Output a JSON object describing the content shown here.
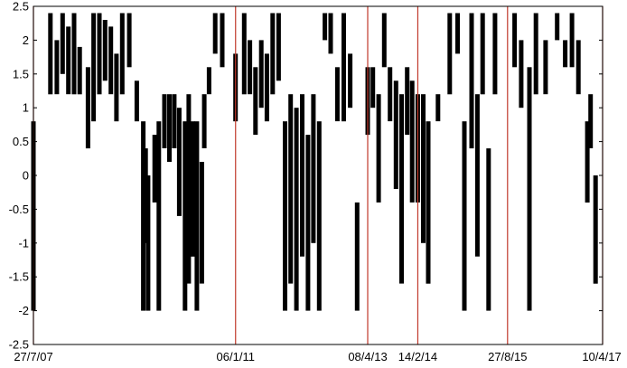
{
  "chart_data": {
    "type": "bar",
    "title": "",
    "xlabel": "",
    "ylabel": "",
    "ylim": [
      -2.5,
      2.5
    ],
    "yticks": [
      -2.5,
      -2,
      -1.5,
      -1,
      -0.5,
      0,
      0.5,
      1,
      1.5,
      2,
      2.5
    ],
    "ytick_labels": [
      "-2.5",
      "-2",
      "-1.5",
      "-1",
      "-0.5",
      "0",
      "0.5",
      "1",
      "1.5",
      "2",
      "2.5"
    ],
    "xlim": [
      "2007-07-27",
      "2017-04-10"
    ],
    "xtick_labels": [
      {
        "label": "27/7/07",
        "date": "2007-07-27"
      },
      {
        "label": "06/1/11",
        "date": "2011-01-06"
      },
      {
        "label": "08/4/13",
        "date": "2013-04-08"
      },
      {
        "label": "14/2/14",
        "date": "2014-02-14"
      },
      {
        "label": "27/8/15",
        "date": "2015-08-27"
      },
      {
        "label": "10/4/17",
        "date": "2017-04-10"
      }
    ],
    "grid": false,
    "bar_color": "#000000",
    "marker_line_color": "#c0392b",
    "marker_lines": [
      "2007-07-27",
      "2011-01-06",
      "2013-04-08",
      "2014-02-14",
      "2015-08-27",
      "2017-04-10"
    ],
    "ranges": [
      {
        "date": "2007-07-27",
        "low": -2.0,
        "high": 0.8
      },
      {
        "date": "2007-11-10",
        "low": 1.2,
        "high": 2.4
      },
      {
        "date": "2007-12-20",
        "low": 1.2,
        "high": 2.0
      },
      {
        "date": "2008-01-25",
        "low": 1.5,
        "high": 2.4
      },
      {
        "date": "2008-03-01",
        "low": 1.2,
        "high": 2.2
      },
      {
        "date": "2008-04-05",
        "low": 1.2,
        "high": 2.4
      },
      {
        "date": "2008-05-10",
        "low": 1.2,
        "high": 1.9
      },
      {
        "date": "2008-07-01",
        "low": 0.4,
        "high": 1.6
      },
      {
        "date": "2008-08-05",
        "low": 0.8,
        "high": 2.4
      },
      {
        "date": "2008-09-10",
        "low": 1.2,
        "high": 2.4
      },
      {
        "date": "2008-10-15",
        "low": 1.4,
        "high": 2.3
      },
      {
        "date": "2008-11-20",
        "low": 1.2,
        "high": 2.2
      },
      {
        "date": "2008-12-25",
        "low": 0.8,
        "high": 1.8
      },
      {
        "date": "2009-01-30",
        "low": 1.2,
        "high": 2.4
      },
      {
        "date": "2009-03-15",
        "low": 1.6,
        "high": 2.4
      },
      {
        "date": "2009-05-01",
        "low": 0.8,
        "high": 1.4
      },
      {
        "date": "2009-06-10",
        "low": -2.0,
        "high": 0.8
      },
      {
        "date": "2009-06-25",
        "low": -1.0,
        "high": 0.4
      },
      {
        "date": "2009-07-10",
        "low": -2.0,
        "high": 0.0
      },
      {
        "date": "2009-08-20",
        "low": -0.4,
        "high": 0.6
      },
      {
        "date": "2009-09-15",
        "low": -2.0,
        "high": 0.8
      },
      {
        "date": "2009-10-20",
        "low": 0.4,
        "high": 1.2
      },
      {
        "date": "2009-11-20",
        "low": 0.2,
        "high": 1.2
      },
      {
        "date": "2009-12-20",
        "low": 0.4,
        "high": 1.2
      },
      {
        "date": "2010-01-20",
        "low": -0.6,
        "high": 1.0
      },
      {
        "date": "2010-02-25",
        "low": -2.0,
        "high": 0.8
      },
      {
        "date": "2010-03-20",
        "low": -1.6,
        "high": 1.2
      },
      {
        "date": "2010-04-15",
        "low": -1.2,
        "high": 0.8
      },
      {
        "date": "2010-05-10",
        "low": -2.0,
        "high": 0.8
      },
      {
        "date": "2010-06-10",
        "low": -1.6,
        "high": 0.2
      },
      {
        "date": "2010-06-25",
        "low": 0.4,
        "high": 1.2
      },
      {
        "date": "2010-07-25",
        "low": 1.2,
        "high": 1.6
      },
      {
        "date": "2010-09-01",
        "low": 1.8,
        "high": 2.4
      },
      {
        "date": "2010-10-15",
        "low": 1.6,
        "high": 2.4
      },
      {
        "date": "2011-01-06",
        "low": 0.8,
        "high": 1.8
      },
      {
        "date": "2011-03-01",
        "low": 1.2,
        "high": 2.4
      },
      {
        "date": "2011-04-05",
        "low": 1.2,
        "high": 2.0
      },
      {
        "date": "2011-05-10",
        "low": 0.6,
        "high": 1.6
      },
      {
        "date": "2011-06-15",
        "low": 1.0,
        "high": 2.0
      },
      {
        "date": "2011-07-20",
        "low": 0.8,
        "high": 1.8
      },
      {
        "date": "2011-08-25",
        "low": 1.2,
        "high": 2.4
      },
      {
        "date": "2011-10-01",
        "low": 1.4,
        "high": 2.4
      },
      {
        "date": "2011-11-10",
        "low": -2.0,
        "high": 0.8
      },
      {
        "date": "2011-12-15",
        "low": -1.6,
        "high": 1.2
      },
      {
        "date": "2012-01-20",
        "low": -2.0,
        "high": 1.0
      },
      {
        "date": "2012-02-25",
        "low": -1.2,
        "high": 1.2
      },
      {
        "date": "2012-04-01",
        "low": -2.0,
        "high": 0.6
      },
      {
        "date": "2012-05-05",
        "low": -1.0,
        "high": 1.2
      },
      {
        "date": "2012-06-10",
        "low": -2.0,
        "high": 0.8
      },
      {
        "date": "2012-07-15",
        "low": 2.0,
        "high": 2.4
      },
      {
        "date": "2012-08-20",
        "low": 1.8,
        "high": 2.4
      },
      {
        "date": "2012-10-01",
        "low": 0.8,
        "high": 1.6
      },
      {
        "date": "2012-11-10",
        "low": 0.8,
        "high": 2.4
      },
      {
        "date": "2012-12-20",
        "low": 1.0,
        "high": 1.8
      },
      {
        "date": "2013-02-01",
        "low": -2.0,
        "high": -0.4
      },
      {
        "date": "2013-04-08",
        "low": 0.6,
        "high": 1.6
      },
      {
        "date": "2013-05-10",
        "low": 1.0,
        "high": 1.6
      },
      {
        "date": "2013-06-15",
        "low": -0.4,
        "high": 1.2
      },
      {
        "date": "2013-07-20",
        "low": 1.6,
        "high": 2.4
      },
      {
        "date": "2013-08-25",
        "low": 0.8,
        "high": 1.6
      },
      {
        "date": "2013-10-01",
        "low": -0.2,
        "high": 1.4
      },
      {
        "date": "2013-11-05",
        "low": -1.6,
        "high": 1.2
      },
      {
        "date": "2013-12-10",
        "low": 0.6,
        "high": 1.6
      },
      {
        "date": "2014-01-10",
        "low": -0.4,
        "high": 1.4
      },
      {
        "date": "2014-02-14",
        "low": -0.4,
        "high": 1.2
      },
      {
        "date": "2014-03-20",
        "low": -1.0,
        "high": 1.2
      },
      {
        "date": "2014-04-20",
        "low": -1.6,
        "high": 0.8
      },
      {
        "date": "2014-06-20",
        "low": 0.8,
        "high": 1.2
      },
      {
        "date": "2014-09-01",
        "low": 1.2,
        "high": 2.4
      },
      {
        "date": "2014-10-20",
        "low": 1.8,
        "high": 2.4
      },
      {
        "date": "2014-12-01",
        "low": -2.0,
        "high": 0.8
      },
      {
        "date": "2015-01-15",
        "low": 0.4,
        "high": 2.4
      },
      {
        "date": "2015-02-20",
        "low": -1.2,
        "high": 1.2
      },
      {
        "date": "2015-03-25",
        "low": 1.2,
        "high": 2.4
      },
      {
        "date": "2015-05-01",
        "low": -2.0,
        "high": 0.4
      },
      {
        "date": "2015-06-10",
        "low": 1.2,
        "high": 2.4
      },
      {
        "date": "2015-10-10",
        "low": 1.6,
        "high": 2.4
      },
      {
        "date": "2015-11-20",
        "low": 1.0,
        "high": 2.0
      },
      {
        "date": "2016-01-10",
        "low": -2.0,
        "high": 1.6
      },
      {
        "date": "2016-02-20",
        "low": 1.2,
        "high": 2.4
      },
      {
        "date": "2016-04-20",
        "low": 1.2,
        "high": 2.0
      },
      {
        "date": "2016-07-01",
        "low": 2.0,
        "high": 2.4
      },
      {
        "date": "2016-08-20",
        "low": 1.6,
        "high": 2.0
      },
      {
        "date": "2016-10-01",
        "low": 1.6,
        "high": 2.4
      },
      {
        "date": "2016-11-10",
        "low": 1.2,
        "high": 2.0
      },
      {
        "date": "2017-01-05",
        "low": -0.4,
        "high": 0.8
      },
      {
        "date": "2017-01-25",
        "low": 0.4,
        "high": 1.2
      },
      {
        "date": "2017-02-25",
        "low": -1.6,
        "high": 0.0
      }
    ]
  }
}
